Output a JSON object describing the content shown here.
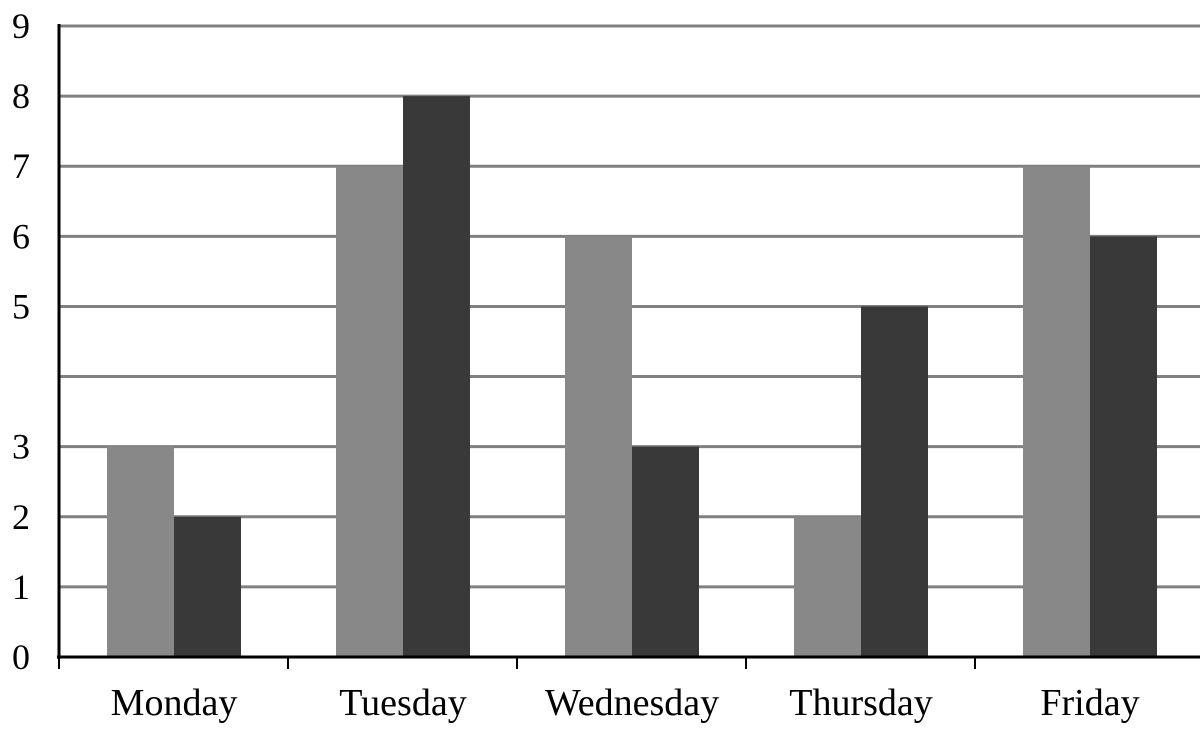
{
  "chart_data": {
    "type": "bar",
    "title": "",
    "xlabel": "",
    "ylabel": "",
    "categories": [
      "Monday",
      "Tuesday",
      "Wednesday",
      "Thursday",
      "Friday"
    ],
    "series": [
      {
        "values": [
          3,
          7,
          6,
          2,
          7
        ],
        "color": "#888888"
      },
      {
        "values": [
          2,
          8,
          3,
          5,
          6
        ],
        "color": "#393939"
      }
    ],
    "ylim": [
      0,
      9
    ],
    "y_ticks": [
      "0",
      "1",
      "2",
      "3",
      "5",
      "6",
      "7",
      "8",
      "9"
    ],
    "grid": true,
    "legend": "none"
  }
}
